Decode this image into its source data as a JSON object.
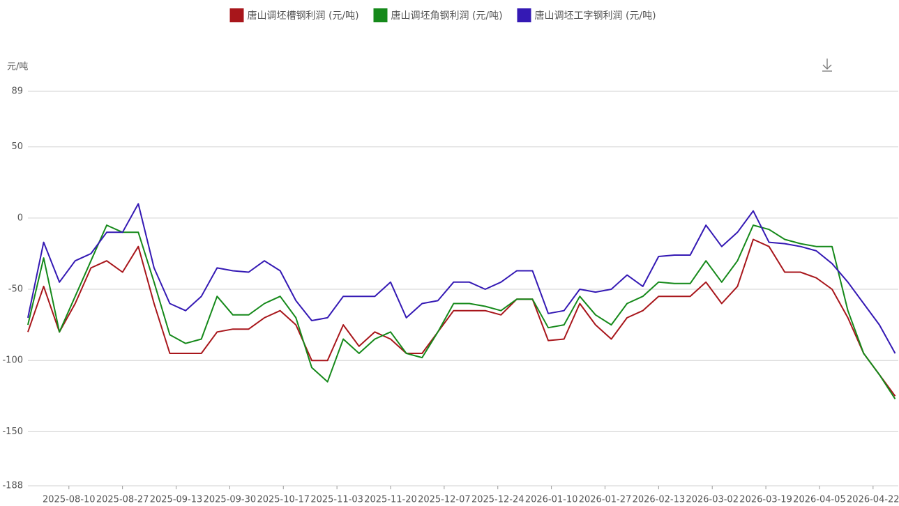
{
  "chart_data": {
    "type": "line",
    "y_unit": "元/吨",
    "x": [
      "2025-07-28",
      "2025-08-02",
      "2025-08-07",
      "2025-08-12",
      "2025-08-17",
      "2025-08-22",
      "2025-08-27",
      "2025-09-01",
      "2025-09-06",
      "2025-09-11",
      "2025-09-16",
      "2025-09-21",
      "2025-09-26",
      "2025-10-01",
      "2025-10-06",
      "2025-10-11",
      "2025-10-16",
      "2025-10-21",
      "2025-10-26",
      "2025-10-31",
      "2025-11-05",
      "2025-11-10",
      "2025-11-15",
      "2025-11-20",
      "2025-11-25",
      "2025-11-30",
      "2025-12-05",
      "2025-12-10",
      "2025-12-15",
      "2025-12-20",
      "2025-12-25",
      "2025-12-30",
      "2026-01-04",
      "2026-01-09",
      "2026-01-14",
      "2026-01-19",
      "2026-01-24",
      "2026-01-29",
      "2026-02-03",
      "2026-02-08",
      "2026-02-13",
      "2026-02-18",
      "2026-02-23",
      "2026-02-28",
      "2026-03-05",
      "2026-03-10",
      "2026-03-15",
      "2026-03-20",
      "2026-03-25",
      "2026-03-30",
      "2026-04-04",
      "2026-04-09",
      "2026-04-14",
      "2026-04-19",
      "2026-04-24",
      "2026-04-29"
    ],
    "series": [
      {
        "name": "唐山调坯槽钢利润 (元/吨)",
        "color": "#a8161b",
        "values": [
          -80,
          -48,
          -80,
          -60,
          -35,
          -30,
          -38,
          -20,
          -60,
          -95,
          -95,
          -95,
          -80,
          -78,
          -78,
          -70,
          -65,
          -75,
          -100,
          -100,
          -75,
          -90,
          -80,
          -85,
          -95,
          -95,
          -80,
          -65,
          -65,
          -65,
          -68,
          -57,
          -57,
          -86,
          -85,
          -60,
          -75,
          -85,
          -70,
          -65,
          -55,
          -55,
          -55,
          -45,
          -60,
          -48,
          -15,
          -20,
          -38,
          -38,
          -42,
          -50,
          -70,
          -95,
          -110,
          -125
        ]
      },
      {
        "name": "唐山调坯角钢利润 (元/吨)",
        "color": "#15891a",
        "values": [
          -75,
          -28,
          -80,
          -55,
          -30,
          -5,
          -10,
          -10,
          -45,
          -82,
          -88,
          -85,
          -55,
          -68,
          -68,
          -60,
          -55,
          -70,
          -105,
          -115,
          -85,
          -95,
          -85,
          -80,
          -95,
          -98,
          -80,
          -60,
          -60,
          -62,
          -65,
          -57,
          -57,
          -77,
          -75,
          -55,
          -68,
          -75,
          -60,
          -55,
          -45,
          -46,
          -46,
          -30,
          -45,
          -30,
          -5,
          -8,
          -15,
          -18,
          -20,
          -20,
          -65,
          -95,
          -110,
          -127
        ]
      },
      {
        "name": "唐山调坯工字钢利润 (元/吨)",
        "color": "#3419b4",
        "values": [
          -70,
          -17,
          -45,
          -30,
          -25,
          -10,
          -10,
          10,
          -35,
          -60,
          -65,
          -55,
          -35,
          -37,
          -38,
          -30,
          -37,
          -58,
          -72,
          -70,
          -55,
          -55,
          -55,
          -45,
          -70,
          -60,
          -58,
          -45,
          -45,
          -50,
          -45,
          -37,
          -37,
          -67,
          -65,
          -50,
          -52,
          -50,
          -40,
          -48,
          -27,
          -26,
          -26,
          -5,
          -20,
          -10,
          5,
          -17,
          -18,
          -20,
          -23,
          -32,
          -45,
          -60,
          -75,
          -95
        ]
      }
    ],
    "xlim": [
      "2025-07-28",
      "2026-04-30"
    ],
    "xticks": [
      "2025-08-10",
      "2025-08-27",
      "2025-09-13",
      "2025-09-30",
      "2025-10-17",
      "2025-11-03",
      "2025-11-20",
      "2025-12-07",
      "2025-12-24",
      "2026-01-10",
      "2026-01-27",
      "2026-02-13",
      "2026-03-02",
      "2026-03-19",
      "2026-04-05",
      "2026-04-22"
    ],
    "ylim": [
      -188,
      89
    ],
    "yticks": [
      89,
      50,
      0,
      -50,
      -100,
      -150,
      -188
    ],
    "grid": true,
    "legend": "top"
  }
}
